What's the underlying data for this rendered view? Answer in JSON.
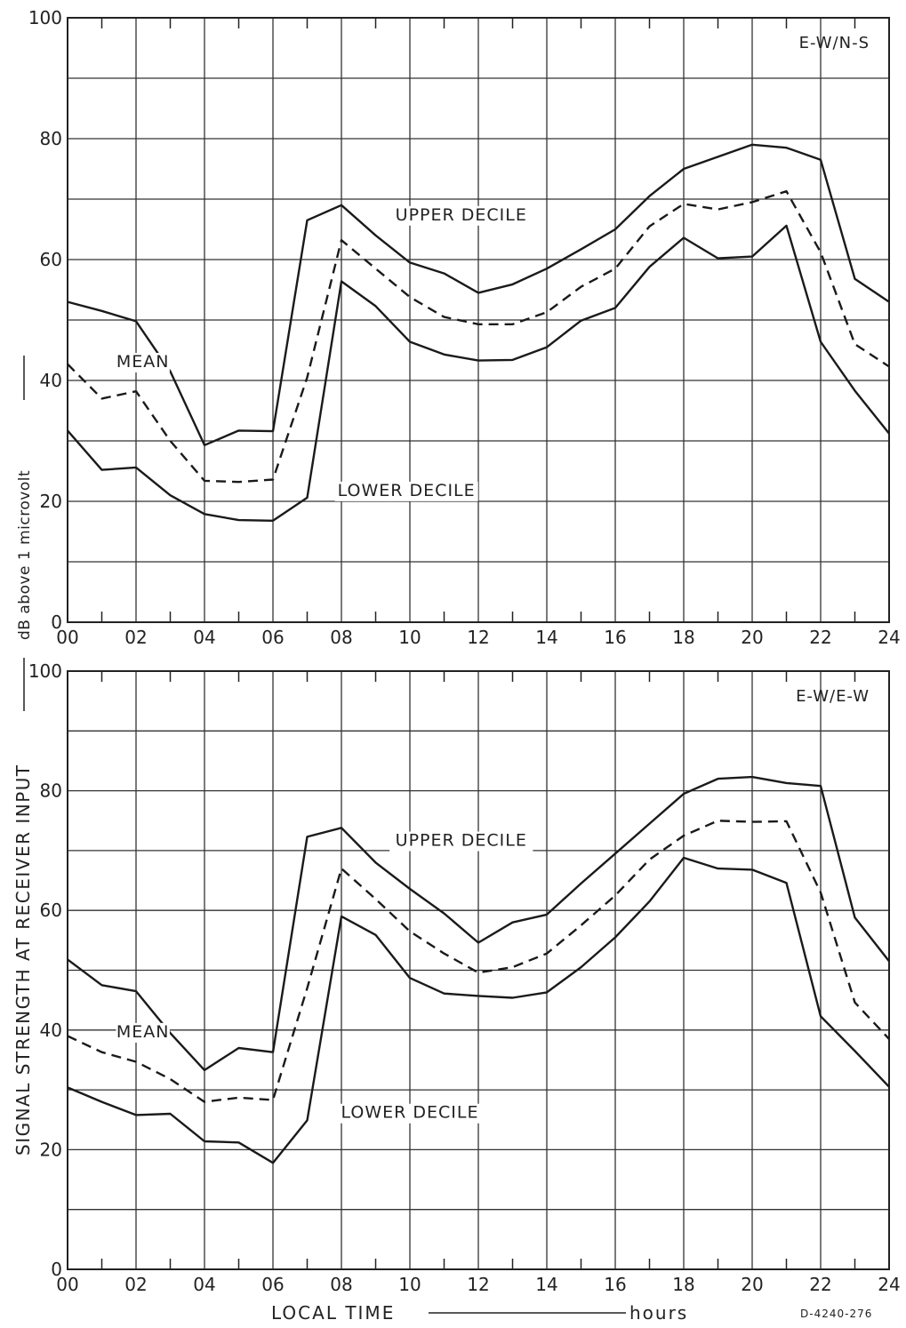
{
  "figure_id": "D-4240-276",
  "y_axis": {
    "label": "SIGNAL STRENGTH AT RECEIVER INPUT",
    "sublabel": "dB above 1 microvolt"
  },
  "x_axis": {
    "label_left": "LOCAL TIME",
    "label_right": "hours"
  },
  "chart_data": [
    {
      "type": "line",
      "panel_label": "E-W/N-S",
      "x": [
        0,
        1,
        2,
        3,
        4,
        5,
        6,
        7,
        8,
        9,
        10,
        11,
        12,
        13,
        14,
        15,
        16,
        17,
        18,
        19,
        20,
        21,
        22,
        23,
        24
      ],
      "xlim": [
        0,
        24
      ],
      "ylim": [
        0,
        100
      ],
      "x_ticks": [
        0,
        2,
        4,
        6,
        8,
        10,
        12,
        14,
        16,
        18,
        20,
        22,
        24
      ],
      "x_tick_labels": [
        "00",
        "02",
        "04",
        "06",
        "08",
        "10",
        "12",
        "14",
        "16",
        "18",
        "20",
        "22",
        "24"
      ],
      "y_ticks": [
        0,
        20,
        40,
        60,
        80,
        100
      ],
      "y_tick_labels": [
        "0",
        "20",
        "40",
        "60",
        "80",
        "100"
      ],
      "grid": true,
      "series": [
        {
          "name": "UPPER DECILE",
          "style": "solid",
          "values": [
            53,
            51.5,
            49.8,
            41.5,
            29.3,
            31.7,
            31.6,
            66.5,
            69,
            64,
            59.5,
            57.7,
            54.5,
            55.9,
            58.5,
            61.7,
            65,
            70.5,
            75,
            77,
            79,
            78.5,
            76.5,
            56.8,
            53
          ]
        },
        {
          "name": "MEAN",
          "style": "dashed",
          "values": [
            42.7,
            37,
            38.2,
            30,
            23.4,
            23.2,
            23.6,
            40.5,
            63.2,
            58.5,
            53.8,
            50.5,
            49.3,
            49.3,
            51.3,
            55.5,
            58.5,
            65.5,
            69.2,
            68.3,
            69.5,
            71.3,
            61.2,
            46,
            42.3
          ]
        },
        {
          "name": "LOWER DECILE",
          "style": "solid",
          "values": [
            31.7,
            25.2,
            25.6,
            21,
            17.9,
            16.9,
            16.8,
            20.6,
            56.4,
            52.3,
            46.4,
            44.3,
            43.3,
            43.4,
            45.5,
            49.9,
            52,
            58.8,
            63.6,
            60.2,
            60.5,
            65.6,
            46.4,
            38.3,
            31.2
          ]
        }
      ]
    },
    {
      "type": "line",
      "panel_label": "E-W/E-W",
      "x": [
        0,
        1,
        2,
        3,
        4,
        5,
        6,
        7,
        8,
        9,
        10,
        11,
        12,
        13,
        14,
        15,
        16,
        17,
        18,
        19,
        20,
        21,
        22,
        23,
        24
      ],
      "xlim": [
        0,
        24
      ],
      "ylim": [
        0,
        100
      ],
      "x_ticks": [
        0,
        2,
        4,
        6,
        8,
        10,
        12,
        14,
        16,
        18,
        20,
        22,
        24
      ],
      "x_tick_labels": [
        "00",
        "02",
        "04",
        "06",
        "08",
        "10",
        "12",
        "14",
        "16",
        "18",
        "20",
        "22",
        "24"
      ],
      "y_ticks": [
        0,
        20,
        40,
        60,
        80,
        100
      ],
      "y_tick_labels": [
        "0",
        "20",
        "40",
        "60",
        "80",
        "100"
      ],
      "grid": true,
      "series": [
        {
          "name": "UPPER DECILE",
          "style": "solid",
          "values": [
            51.8,
            47.5,
            46.5,
            39.5,
            33.3,
            37,
            36.3,
            72.3,
            73.8,
            68,
            63.6,
            59.5,
            54.6,
            58,
            59.3,
            64.5,
            69.5,
            74.5,
            79.5,
            82,
            82.3,
            81.3,
            80.8,
            58.8,
            51.5
          ]
        },
        {
          "name": "MEAN",
          "style": "dashed",
          "values": [
            39,
            36.3,
            34.7,
            31.8,
            28,
            28.7,
            28.3,
            47,
            67,
            61.9,
            56.5,
            52.8,
            49.6,
            50.5,
            52.8,
            57.5,
            62.5,
            68.5,
            72.5,
            75,
            74.8,
            74.9,
            63,
            44.6,
            38.5
          ]
        },
        {
          "name": "LOWER DECILE",
          "style": "solid",
          "values": [
            30.4,
            28,
            25.8,
            26,
            21.4,
            21.2,
            17.8,
            24.9,
            59,
            55.9,
            48.7,
            46.1,
            45.7,
            45.4,
            46.3,
            50.5,
            55.5,
            61.5,
            68.8,
            67,
            66.8,
            64.6,
            42.3,
            36.5,
            30.5
          ]
        }
      ]
    }
  ],
  "annotations": [
    {
      "panel": 0,
      "text": "UPPER DECILE",
      "x": 11.5,
      "y": 66.5
    },
    {
      "panel": 0,
      "text": "MEAN",
      "x": 2.2,
      "y": 42.2
    },
    {
      "panel": 0,
      "text": "LOWER DECILE",
      "x": 9.9,
      "y": 20.9
    },
    {
      "panel": 1,
      "text": "UPPER DECILE",
      "x": 11.5,
      "y": 70.8
    },
    {
      "panel": 1,
      "text": "MEAN",
      "x": 2.2,
      "y": 38.8
    },
    {
      "panel": 1,
      "text": "LOWER DECILE",
      "x": 10.0,
      "y": 25.3
    }
  ]
}
